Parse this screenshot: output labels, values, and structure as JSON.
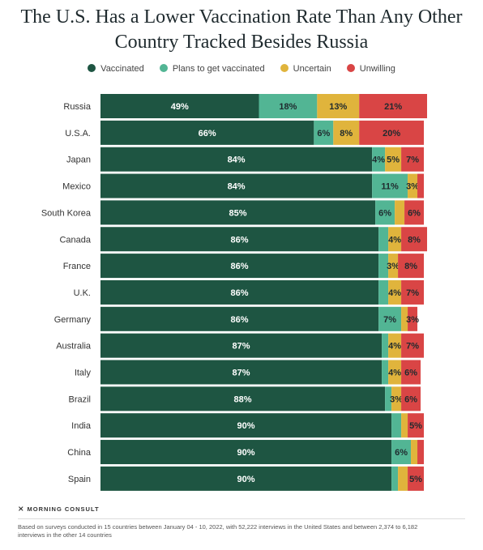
{
  "chart_data": {
    "type": "bar",
    "orientation": "horizontal",
    "stacked": true,
    "title": "The U.S. Has a Lower Vaccination Rate Than Any Other Country Tracked Besides Russia",
    "title_lines": [
      "The U.S. Has a Lower Vaccination Rate Than Any Other",
      "Country Tracked Besides Russia"
    ],
    "categories": [
      "Russia",
      "U.S.A.",
      "Japan",
      "Mexico",
      "South Korea",
      "Canada",
      "France",
      "U.K.",
      "Germany",
      "Australia",
      "Italy",
      "Brazil",
      "India",
      "China",
      "Spain"
    ],
    "series": [
      {
        "name": "Vaccinated",
        "color": "#1e5542",
        "values": [
          49,
          66,
          84,
          84,
          85,
          86,
          86,
          86,
          86,
          87,
          87,
          88,
          90,
          90,
          90
        ],
        "labels": [
          "49%",
          "66%",
          "84%",
          "84%",
          "85%",
          "86%",
          "86%",
          "86%",
          "86%",
          "87%",
          "87%",
          "88%",
          "90%",
          "90%",
          "90%"
        ]
      },
      {
        "name": "Plans to get vaccinated",
        "color": "#52b594",
        "values": [
          18,
          6,
          4,
          11,
          6,
          3,
          3,
          3,
          7,
          2,
          2,
          2,
          3,
          6,
          2
        ],
        "labels": [
          "18%",
          "6%",
          "4%",
          "11%",
          "6%",
          "",
          "",
          "",
          "7%",
          "",
          "",
          "",
          "",
          "6%",
          ""
        ]
      },
      {
        "name": "Uncertain",
        "color": "#e0b43c",
        "values": [
          13,
          8,
          5,
          3,
          3,
          4,
          3,
          4,
          2,
          4,
          4,
          3,
          2,
          2,
          3
        ],
        "labels": [
          "13%",
          "8%",
          "5%",
          "3%",
          "",
          "4%",
          "3%",
          "4%",
          "",
          "4%",
          "4%",
          "3%",
          "",
          "",
          ""
        ]
      },
      {
        "name": "Unwilling",
        "color": "#d94545",
        "values": [
          21,
          20,
          7,
          2,
          6,
          8,
          8,
          7,
          3,
          7,
          6,
          6,
          5,
          2,
          5
        ],
        "labels": [
          "21%",
          "20%",
          "7%",
          "",
          "6%",
          "8%",
          "8%",
          "7%",
          "3%",
          "7%",
          "6%",
          "6%",
          "5%",
          "",
          "5%"
        ]
      }
    ],
    "xlim": [
      0,
      100
    ],
    "legend_position": "top",
    "grid": false
  },
  "legend": [
    {
      "label": "Vaccinated",
      "color": "#1e5542"
    },
    {
      "label": "Plans to get vaccinated",
      "color": "#52b594"
    },
    {
      "label": "Uncertain",
      "color": "#e0b43c"
    },
    {
      "label": "Unwilling",
      "color": "#d94545"
    }
  ],
  "brand": "MORNING CONSULT",
  "footnote": "Based on surveys conducted in 15 countries between January 04 - 10, 2022, with 52,222 interviews in the United States and between 2,374 to 6,182 interviews in the other 14 countries"
}
